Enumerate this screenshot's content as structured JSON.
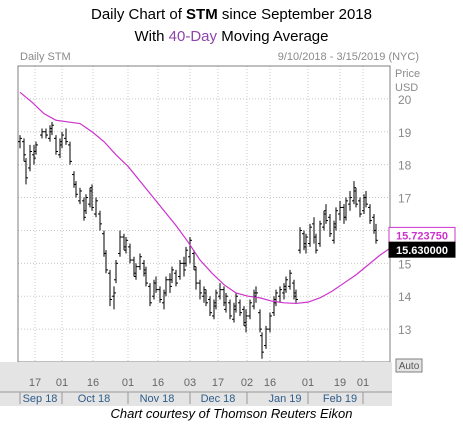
{
  "header": {
    "title_prefix": "Daily Chart of ",
    "ticker": "STM",
    "title_suffix": " since September 2018",
    "subtitle_prefix": "With ",
    "subtitle_highlight": "40-Day",
    "subtitle_suffix": " Moving Average"
  },
  "panel": {
    "label": "Daily STM",
    "date_range": "9/10/2018 - 3/15/2019 (NYC)",
    "price_label_1": "Price",
    "price_label_2": "USD",
    "auto_label": "Auto"
  },
  "footer": {
    "credit": "Chart courtesy of Thomson Reuters Eikon"
  },
  "colors": {
    "ma_line": "#cc33cc",
    "bars": "#000000",
    "grid": "#c8c8c8",
    "frame": "#7f7f7f",
    "axis_bg": "#e4e4e4",
    "label_bg": "#000000",
    "month_text": "#2e5c8a"
  },
  "chart_data": {
    "type": "ohlc",
    "ylim": [
      12,
      21
    ],
    "y_ticks": [
      13,
      14,
      15,
      16,
      17,
      18,
      19,
      20
    ],
    "x_ticks": [
      "17",
      "01",
      "16",
      "01",
      "16",
      "03",
      "17",
      "02",
      "16",
      "01",
      "19",
      "01"
    ],
    "month_labels": [
      "Sep 18",
      "Oct 18",
      "Nov 18",
      "Dec 18",
      "Jan 19",
      "Feb 19"
    ],
    "last_price_labels": [
      "15.723750",
      "15.630000"
    ],
    "moving_average": {
      "name": "40-Day Moving Average",
      "points": [
        [
          0,
          20.2
        ],
        [
          6,
          19.9
        ],
        [
          12,
          19.55
        ],
        [
          18,
          19.35
        ],
        [
          24,
          19.3
        ],
        [
          30,
          19.25
        ],
        [
          36,
          19.0
        ],
        [
          42,
          18.7
        ],
        [
          48,
          18.3
        ],
        [
          54,
          17.95
        ],
        [
          60,
          17.5
        ],
        [
          66,
          17.05
        ],
        [
          72,
          16.6
        ],
        [
          78,
          16.15
        ],
        [
          84,
          15.65
        ],
        [
          90,
          15.1
        ],
        [
          96,
          14.7
        ],
        [
          102,
          14.35
        ],
        [
          108,
          14.1
        ],
        [
          114,
          14.0
        ],
        [
          120,
          13.95
        ],
        [
          126,
          13.85
        ],
        [
          132,
          13.8
        ],
        [
          138,
          13.78
        ],
        [
          144,
          13.82
        ],
        [
          150,
          13.95
        ],
        [
          156,
          14.15
        ],
        [
          162,
          14.4
        ],
        [
          168,
          14.65
        ],
        [
          174,
          14.95
        ],
        [
          180,
          15.25
        ],
        [
          186,
          15.5
        ],
        [
          190,
          15.72
        ]
      ]
    },
    "ohlc_bars": [
      [
        0,
        18.5,
        18.9,
        18.7,
        18.8
      ],
      [
        2,
        18.1,
        18.8,
        18.7,
        18.3
      ],
      [
        3,
        17.4,
        18.2,
        18.1,
        17.6
      ],
      [
        5,
        17.8,
        18.6,
        17.9,
        18.4
      ],
      [
        7,
        18.0,
        18.6,
        18.3,
        18.2
      ],
      [
        8,
        18.3,
        18.7,
        18.4,
        18.6
      ],
      [
        11,
        18.8,
        19.1,
        18.9,
        19.0
      ],
      [
        13,
        18.8,
        19.1,
        19.0,
        18.9
      ],
      [
        15,
        18.7,
        19.2,
        18.8,
        19.1
      ],
      [
        16,
        18.9,
        19.3,
        19.0,
        19.2
      ],
      [
        18,
        18.3,
        18.9,
        18.8,
        18.4
      ],
      [
        20,
        18.2,
        18.8,
        18.3,
        18.7
      ],
      [
        21,
        18.5,
        19.0,
        18.6,
        18.9
      ],
      [
        23,
        18.6,
        19.1,
        18.8,
        18.7
      ],
      [
        25,
        18.0,
        18.7,
        18.6,
        18.1
      ],
      [
        27,
        17.3,
        17.8,
        17.7,
        17.4
      ],
      [
        28,
        17.0,
        17.5,
        17.4,
        17.1
      ],
      [
        30,
        16.8,
        17.3,
        16.9,
        17.2
      ],
      [
        32,
        16.3,
        17.0,
        16.9,
        16.4
      ],
      [
        33,
        16.5,
        17.1,
        16.6,
        17.0
      ],
      [
        35,
        16.7,
        17.3,
        16.8,
        17.2
      ],
      [
        36,
        16.6,
        17.4,
        17.3,
        16.7
      ],
      [
        38,
        16.4,
        17.0,
        16.5,
        16.9
      ],
      [
        40,
        16.0,
        16.6,
        16.5,
        16.2
      ],
      [
        42,
        15.2,
        16.0,
        15.9,
        15.3
      ],
      [
        43,
        14.7,
        15.4,
        15.3,
        14.8
      ],
      [
        45,
        13.7,
        14.8,
        14.7,
        13.9
      ],
      [
        47,
        13.6,
        14.3,
        14.0,
        14.1
      ],
      [
        48,
        14.4,
        15.1,
        14.5,
        15.0
      ],
      [
        50,
        15.2,
        16.0,
        15.3,
        15.8
      ],
      [
        52,
        15.4,
        15.9,
        15.8,
        15.5
      ],
      [
        53,
        15.3,
        15.8,
        15.4,
        15.7
      ],
      [
        55,
        15.0,
        15.6,
        15.5,
        15.1
      ],
      [
        57,
        14.6,
        15.2,
        15.1,
        14.7
      ],
      [
        58,
        14.5,
        15.0,
        14.6,
        14.9
      ],
      [
        60,
        14.8,
        15.3,
        14.9,
        15.2
      ],
      [
        62,
        14.6,
        15.1,
        15.0,
        14.7
      ],
      [
        63,
        14.3,
        14.9,
        14.8,
        14.4
      ],
      [
        65,
        13.7,
        14.4,
        14.3,
        13.8
      ],
      [
        67,
        13.9,
        14.5,
        14.0,
        14.4
      ],
      [
        68,
        14.1,
        14.6,
        14.4,
        14.2
      ],
      [
        70,
        13.8,
        14.3,
        14.2,
        13.9
      ],
      [
        72,
        13.6,
        14.2,
        13.8,
        14.1
      ],
      [
        73,
        14.0,
        14.6,
        14.1,
        14.5
      ],
      [
        75,
        14.1,
        14.7,
        14.5,
        14.3
      ],
      [
        76,
        14.4,
        14.9,
        14.5,
        14.8
      ],
      [
        78,
        14.3,
        14.8,
        14.7,
        14.4
      ],
      [
        80,
        14.5,
        15.1,
        14.6,
        15.0
      ],
      [
        82,
        14.6,
        15.2,
        15.0,
        14.8
      ],
      [
        83,
        14.9,
        15.5,
        15.0,
        15.4
      ],
      [
        85,
        15.0,
        15.8,
        15.2,
        15.7
      ],
      [
        87,
        14.8,
        15.4,
        15.3,
        14.9
      ],
      [
        88,
        14.2,
        14.9,
        14.8,
        14.4
      ],
      [
        90,
        13.9,
        14.5,
        14.4,
        14.1
      ],
      [
        92,
        13.8,
        14.3,
        14.0,
        14.2
      ],
      [
        93,
        13.7,
        14.2,
        14.1,
        13.8
      ],
      [
        95,
        13.4,
        14.0,
        13.9,
        13.5
      ],
      [
        97,
        13.3,
        13.9,
        13.4,
        13.8
      ],
      [
        98,
        13.6,
        14.2,
        13.7,
        14.1
      ],
      [
        100,
        13.9,
        14.4,
        14.0,
        14.2
      ],
      [
        102,
        13.7,
        14.3,
        14.2,
        13.8
      ],
      [
        103,
        13.5,
        14.1,
        13.6,
        14.0
      ],
      [
        105,
        13.3,
        13.9,
        13.8,
        13.4
      ],
      [
        107,
        13.2,
        13.8,
        13.3,
        13.7
      ],
      [
        108,
        13.5,
        14.1,
        13.6,
        14.0
      ],
      [
        110,
        13.4,
        13.9,
        13.8,
        13.5
      ],
      [
        112,
        13.1,
        13.7,
        13.6,
        13.2
      ],
      [
        113,
        12.9,
        13.6,
        13.1,
        13.4
      ],
      [
        115,
        13.3,
        13.9,
        13.4,
        13.8
      ],
      [
        117,
        13.6,
        14.2,
        13.7,
        14.1
      ],
      [
        118,
        13.8,
        14.3,
        14.0,
        14.1
      ],
      [
        120,
        12.9,
        13.6,
        13.5,
        13.0
      ],
      [
        121,
        12.1,
        12.9,
        12.8,
        12.3
      ],
      [
        123,
        12.4,
        13.1,
        12.5,
        13.0
      ],
      [
        125,
        12.9,
        13.5,
        13.0,
        13.4
      ],
      [
        127,
        13.4,
        14.0,
        13.5,
        13.9
      ],
      [
        128,
        13.7,
        14.2,
        13.8,
        14.1
      ],
      [
        130,
        13.8,
        14.3,
        14.0,
        14.2
      ],
      [
        132,
        13.9,
        14.4,
        14.1,
        14.3
      ],
      [
        133,
        14.1,
        14.6,
        14.2,
        14.5
      ],
      [
        135,
        14.2,
        14.8,
        14.3,
        14.7
      ],
      [
        137,
        13.9,
        14.5,
        14.4,
        14.0
      ],
      [
        138,
        13.8,
        14.2,
        14.1,
        13.9
      ],
      [
        140,
        15.3,
        16.1,
        15.4,
        16.0
      ],
      [
        142,
        15.4,
        16.0,
        15.9,
        15.6
      ],
      [
        143,
        15.3,
        15.9,
        15.5,
        15.8
      ],
      [
        145,
        15.5,
        16.2,
        15.6,
        16.1
      ],
      [
        147,
        15.6,
        16.4,
        16.2,
        15.8
      ],
      [
        148,
        15.3,
        15.9,
        15.8,
        15.4
      ],
      [
        150,
        15.5,
        16.3,
        15.6,
        16.2
      ],
      [
        152,
        16.0,
        16.6,
        16.1,
        16.5
      ],
      [
        153,
        16.2,
        16.8,
        16.6,
        16.3
      ],
      [
        155,
        15.8,
        16.5,
        16.4,
        15.9
      ],
      [
        157,
        15.6,
        16.3,
        15.7,
        16.2
      ],
      [
        158,
        16.0,
        16.7,
        16.1,
        16.6
      ],
      [
        160,
        16.3,
        16.9,
        16.5,
        16.7
      ],
      [
        162,
        16.2,
        16.8,
        16.7,
        16.4
      ],
      [
        163,
        16.3,
        17.0,
        16.4,
        16.9
      ],
      [
        165,
        16.6,
        17.2,
        16.8,
        17.0
      ],
      [
        167,
        16.8,
        17.5,
        16.9,
        17.3
      ],
      [
        168,
        16.7,
        17.3,
        17.2,
        16.8
      ],
      [
        170,
        16.4,
        17.0,
        16.9,
        16.5
      ],
      [
        172,
        16.5,
        17.1,
        16.6,
        17.0
      ],
      [
        173,
        16.7,
        17.2,
        17.0,
        16.8
      ],
      [
        175,
        16.2,
        16.8,
        16.7,
        16.3
      ],
      [
        177,
        15.9,
        16.5,
        16.4,
        16.0
      ],
      [
        178,
        15.6,
        16.2,
        16.0,
        15.7
      ]
    ]
  }
}
